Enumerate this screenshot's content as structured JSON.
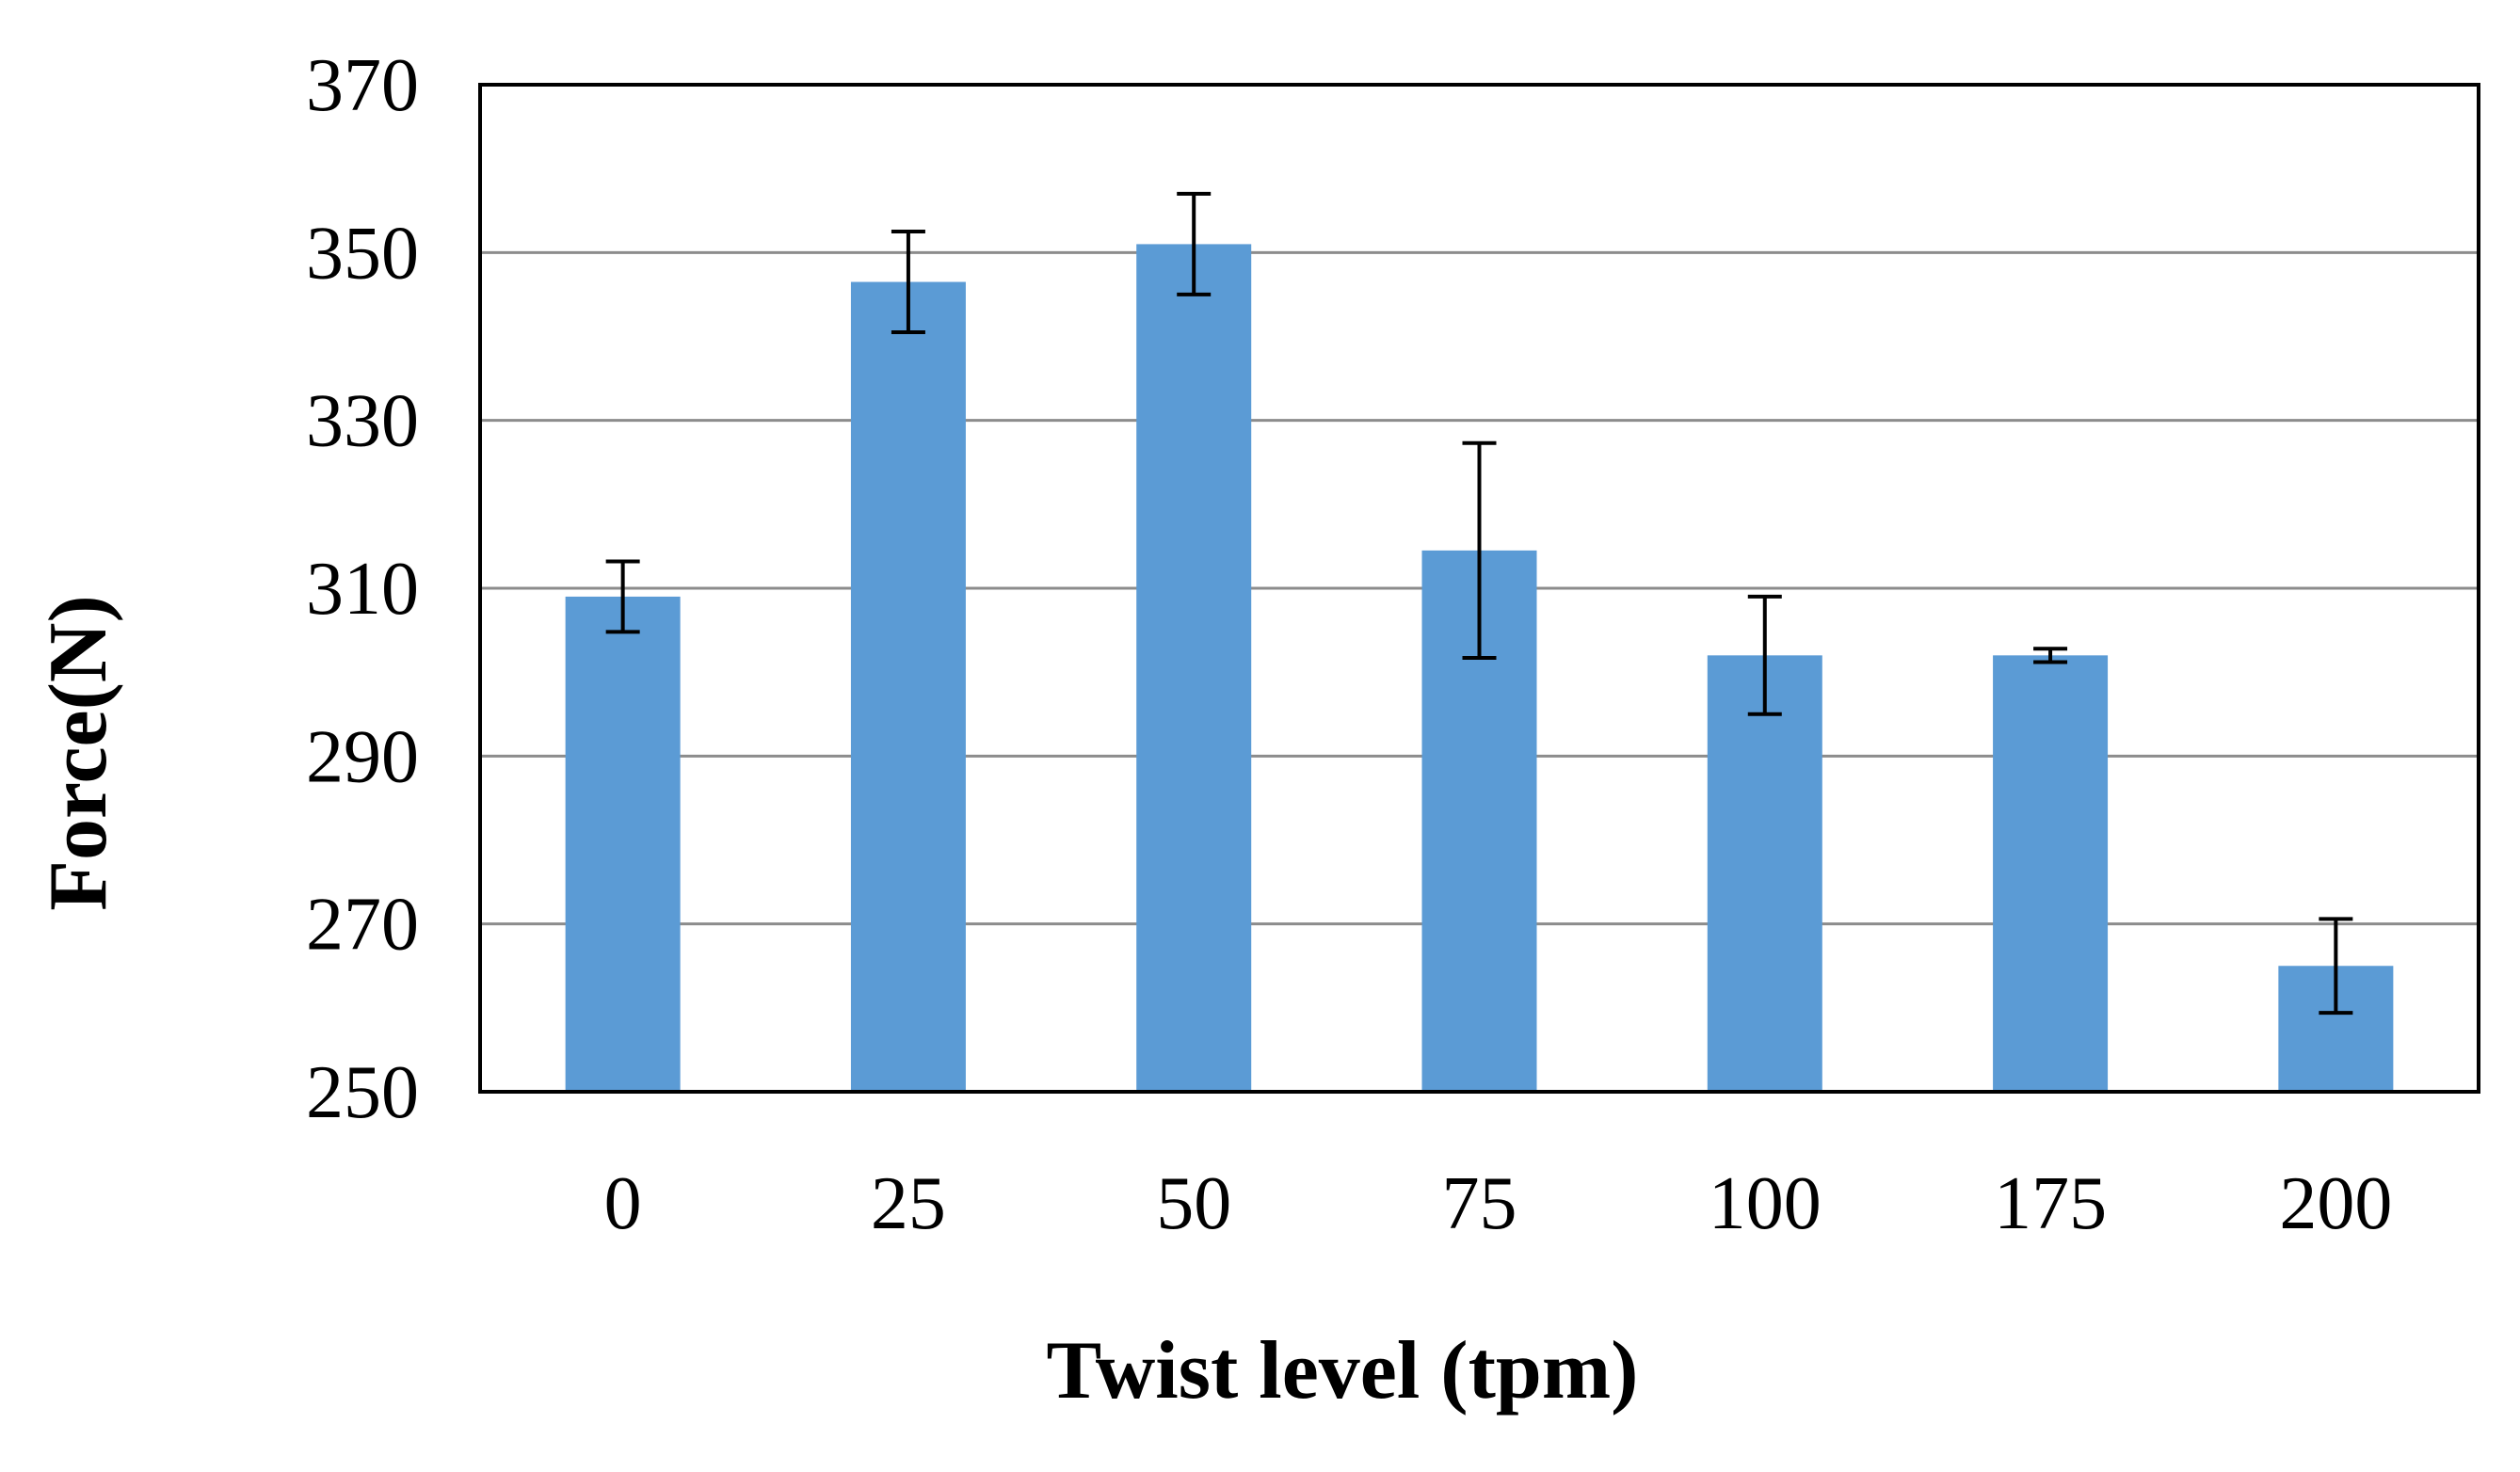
{
  "chart_data": {
    "type": "bar",
    "title": "",
    "xlabel": "Twist level (tpm)",
    "ylabel": "Force(N)",
    "categories": [
      "0",
      "25",
      "50",
      "75",
      "100",
      "175",
      "200"
    ],
    "series": [
      {
        "name": "Force",
        "values": [
          309,
          346.5,
          351,
          314.5,
          302,
          302,
          265
        ],
        "errors": [
          4.2,
          6,
          6,
          12.8,
          7,
          0.8,
          5.6
        ]
      }
    ],
    "ylim": [
      250,
      370
    ],
    "yticks": [
      250,
      270,
      290,
      310,
      330,
      350,
      370
    ],
    "grid": true,
    "legend": "none",
    "colors": {
      "bar": "#5b9bd5",
      "grid": "#8c8c8c",
      "axis": "#000000",
      "error": "#000000"
    }
  }
}
